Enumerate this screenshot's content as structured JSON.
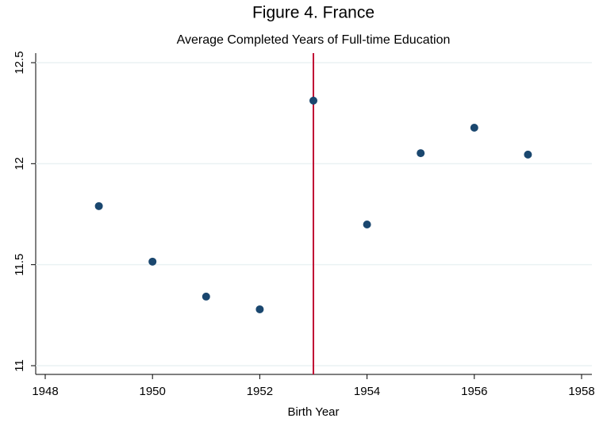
{
  "chart_data": {
    "type": "scatter",
    "title": "Figure 4. France",
    "subtitle": "Average Completed Years of Full-time Education",
    "xlabel": "Birth Year",
    "x": [
      1949,
      1950,
      1951,
      1952,
      1953,
      1954,
      1955,
      1956,
      1957
    ],
    "values": [
      11.79,
      11.515,
      11.342,
      11.279,
      12.312,
      11.699,
      12.052,
      12.178,
      12.045
    ],
    "color": "#1a476f",
    "xlim": [
      1948,
      1958
    ],
    "xticks": [
      1948,
      1950,
      1952,
      1954,
      1956,
      1958
    ],
    "ylim": [
      11,
      12.5
    ],
    "yticks": [
      11,
      11.5,
      12,
      12.5
    ],
    "grid": true,
    "vline": {
      "x": 1953,
      "color": "#c10534"
    }
  }
}
